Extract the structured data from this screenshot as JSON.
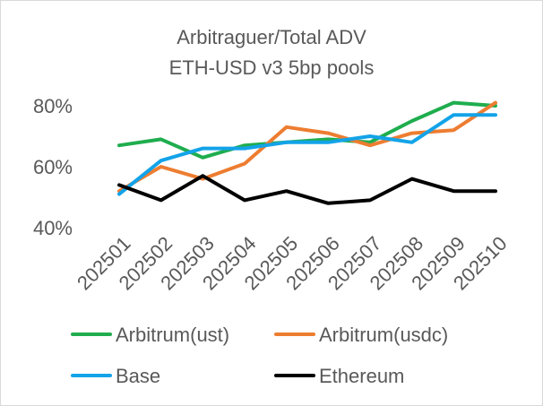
{
  "chart_data": {
    "type": "line",
    "title": [
      "Arbitraguer/Total ADV",
      "ETH-USD v3 5bp pools"
    ],
    "xlabel": "",
    "ylabel": "",
    "categories": [
      "202501",
      "202502",
      "202503",
      "202504",
      "202505",
      "202506",
      "202507",
      "202508",
      "202509",
      "202510"
    ],
    "ylim": [
      0.4,
      0.85
    ],
    "yticks": [
      0.4,
      0.6,
      0.8
    ],
    "ytick_labels": [
      "40%",
      "60%",
      "80%"
    ],
    "grid": false,
    "legend_position": "bottom",
    "series": [
      {
        "name": "Arbitrum(ust)",
        "color": "#1fad4e",
        "values": [
          0.67,
          0.69,
          0.63,
          0.67,
          0.68,
          0.69,
          0.68,
          0.75,
          0.81,
          0.8
        ]
      },
      {
        "name": "Arbitrum(usdc)",
        "color": "#ed7d31",
        "values": [
          0.52,
          0.6,
          0.56,
          0.61,
          0.73,
          0.71,
          0.67,
          0.71,
          0.72,
          0.81
        ]
      },
      {
        "name": "Base",
        "color": "#13a3e8",
        "values": [
          0.51,
          0.62,
          0.66,
          0.66,
          0.68,
          0.68,
          0.7,
          0.68,
          0.77,
          0.77
        ]
      },
      {
        "name": "Ethereum",
        "color": "#000000",
        "values": [
          0.54,
          0.49,
          0.57,
          0.49,
          0.52,
          0.48,
          0.49,
          0.56,
          0.52,
          0.52
        ]
      }
    ]
  }
}
